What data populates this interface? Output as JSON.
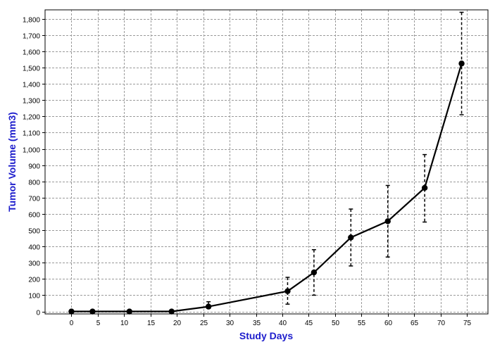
{
  "chart_data": {
    "type": "line",
    "title": "",
    "xlabel": "Study Days",
    "ylabel": "Tumor Volume (mm3)",
    "xlim": [
      -5,
      79
    ],
    "ylim": [
      -15,
      1855
    ],
    "x_ticks": [
      0,
      5,
      10,
      15,
      20,
      25,
      30,
      35,
      40,
      45,
      50,
      55,
      60,
      65,
      70,
      75
    ],
    "y_ticks": [
      0,
      100,
      200,
      300,
      400,
      500,
      600,
      700,
      800,
      900,
      1000,
      1100,
      1200,
      1300,
      1400,
      1500,
      1600,
      1700,
      1800
    ],
    "x_tick_labels": [
      "0",
      "5",
      "10",
      "15",
      "20",
      "25",
      "30",
      "35",
      "40",
      "45",
      "50",
      "55",
      "60",
      "65",
      "70",
      "75"
    ],
    "y_tick_labels": [
      "0",
      "100",
      "200",
      "300",
      "400",
      "500",
      "600",
      "700",
      "800",
      "900",
      "1,000",
      "1,100",
      "1,200",
      "1,300",
      "1,400",
      "1,500",
      "1,600",
      "1,700",
      "1,800"
    ],
    "grid": true,
    "legend": "none",
    "colors": {
      "axis_title": "#1c1ccc",
      "line": "#000000",
      "grid": "#9a9a9a",
      "frame": "#000000"
    },
    "series": [
      {
        "x": [
          0,
          4,
          11,
          19,
          26,
          41,
          46,
          53,
          60,
          67,
          74
        ],
        "y": [
          0,
          0,
          0,
          0,
          30,
          125,
          240,
          455,
          555,
          760,
          1525
        ],
        "error_low": [
          0,
          0,
          0,
          0,
          20,
          45,
          100,
          280,
          335,
          550,
          1210
        ],
        "error_high": [
          0,
          0,
          0,
          0,
          60,
          210,
          380,
          630,
          775,
          965,
          1840
        ]
      }
    ]
  }
}
